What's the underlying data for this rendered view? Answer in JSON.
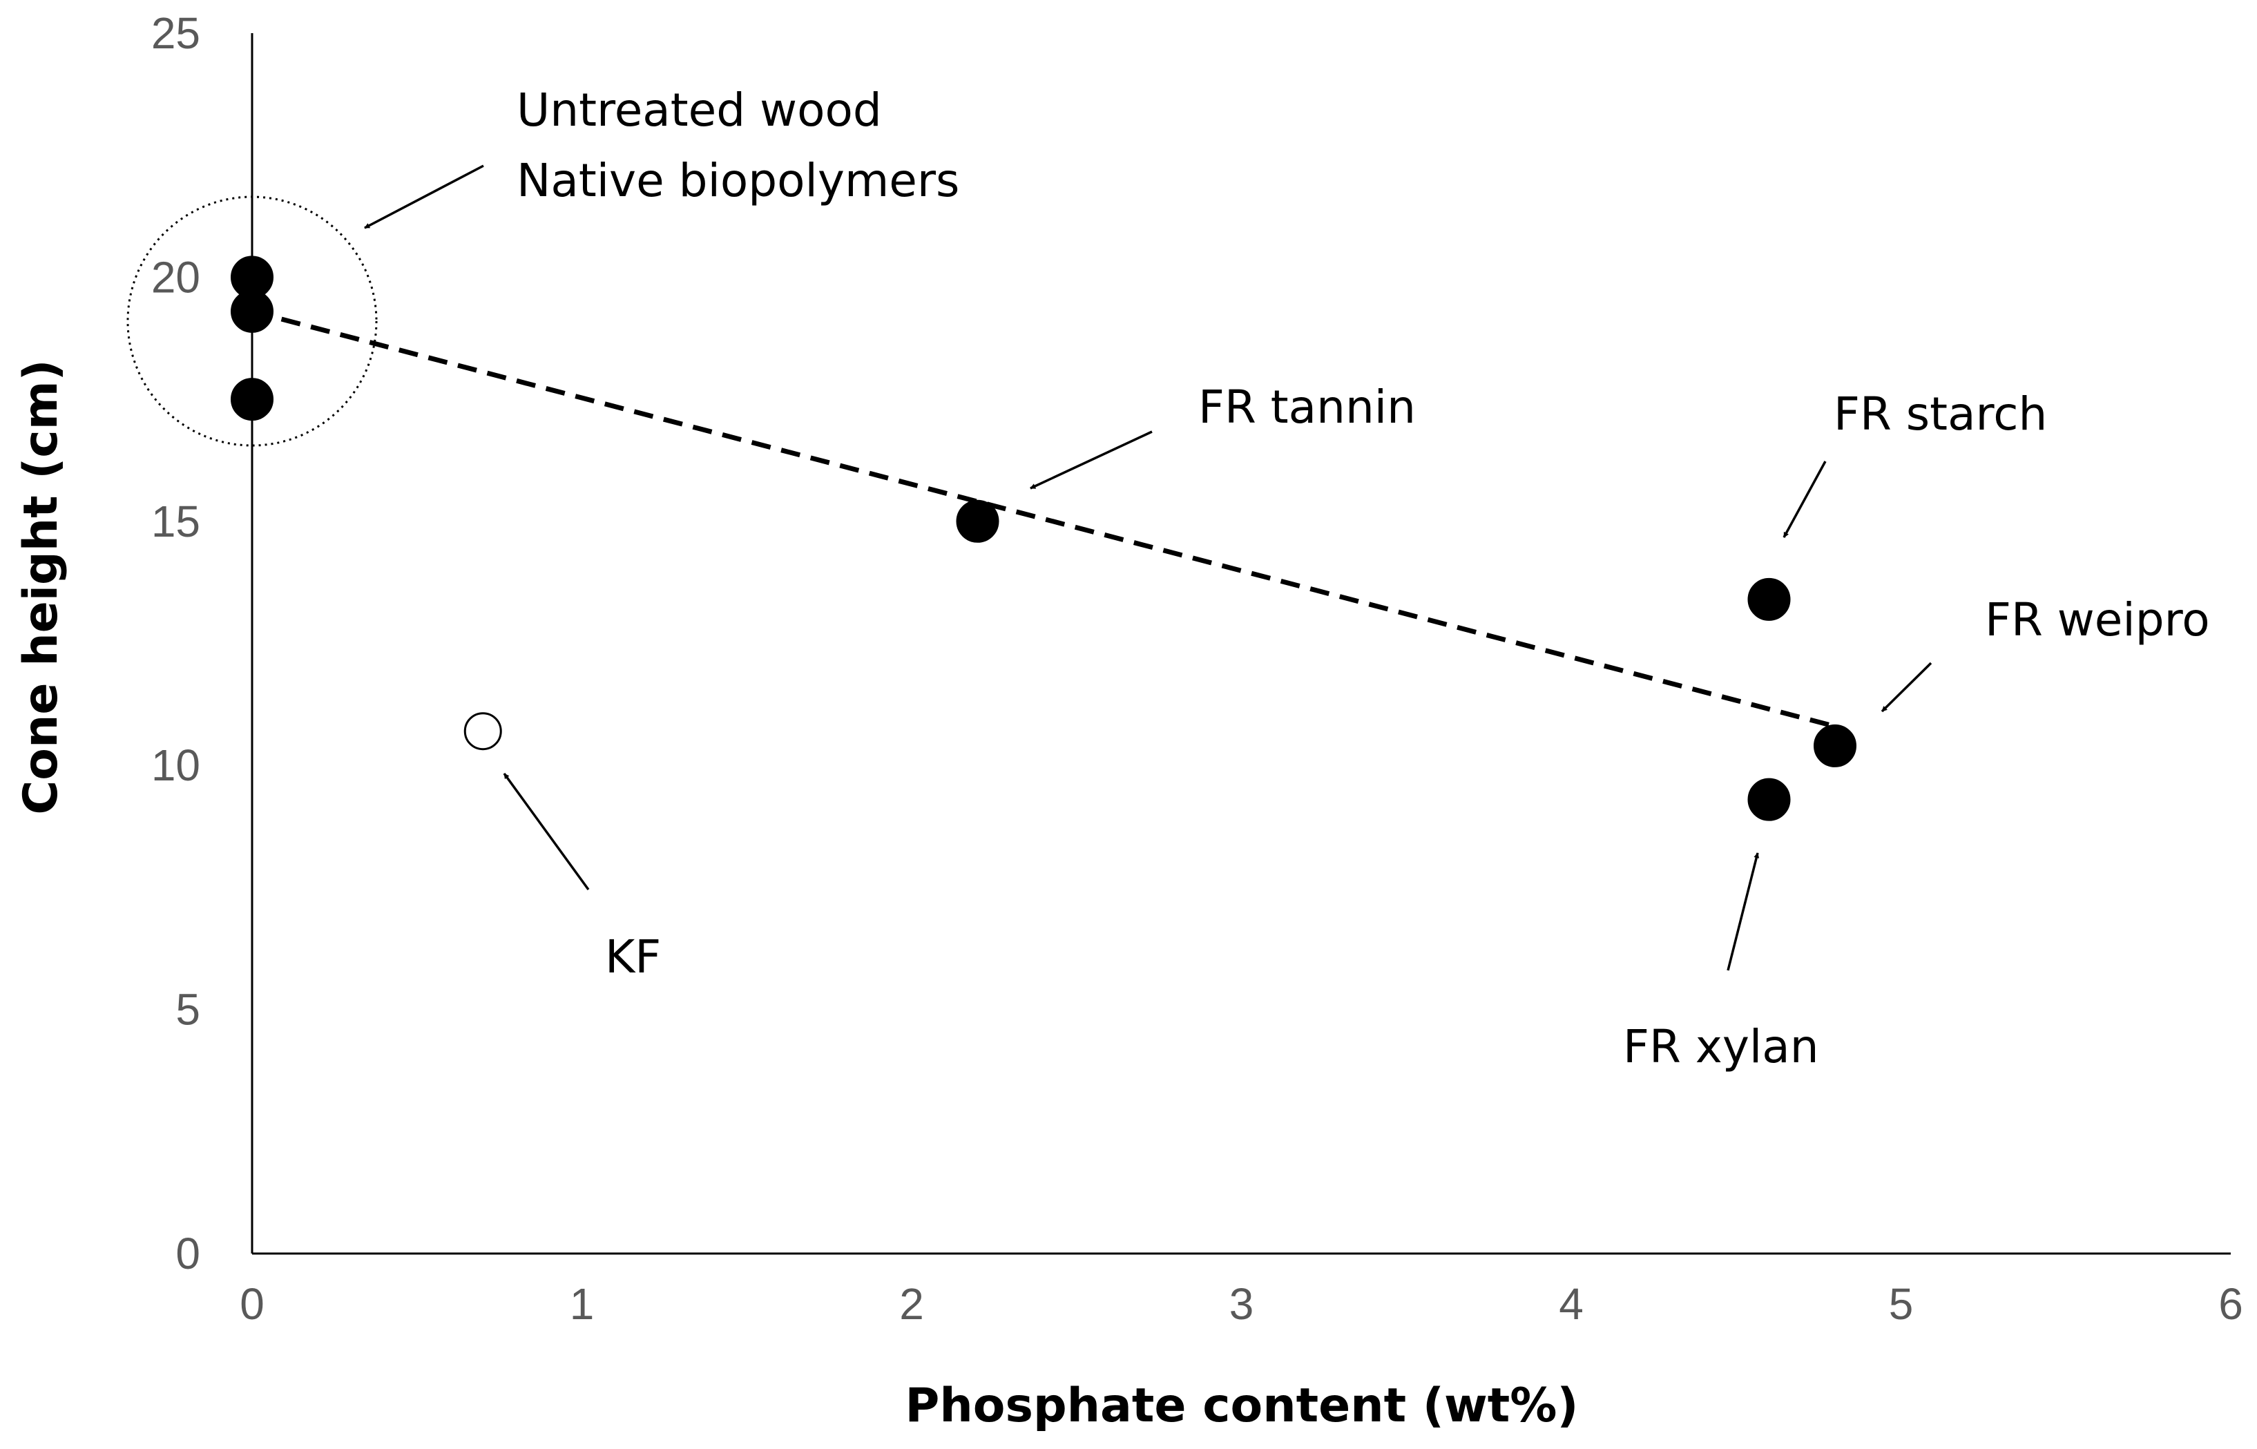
{
  "chart_data": {
    "type": "scatter",
    "xlabel": "Phosphate content (wt%)",
    "ylabel": "Cone height (cm)",
    "xlim": [
      0,
      6
    ],
    "ylim": [
      0,
      25
    ],
    "x_ticks": [
      "0",
      "1",
      "2",
      "3",
      "4",
      "5",
      "6"
    ],
    "y_ticks": [
      "0",
      "5",
      "10",
      "15",
      "20",
      "25"
    ],
    "grid": false,
    "points": [
      {
        "x": 0,
        "y": 20.0,
        "fill": "filled"
      },
      {
        "x": 0,
        "y": 19.3,
        "fill": "filled"
      },
      {
        "x": 0,
        "y": 17.5,
        "fill": "filled"
      },
      {
        "x": 2.2,
        "y": 15.0,
        "fill": "filled"
      },
      {
        "x": 4.6,
        "y": 13.4,
        "fill": "filled"
      },
      {
        "x": 4.8,
        "y": 10.4,
        "fill": "filled"
      },
      {
        "x": 4.6,
        "y": 9.3,
        "fill": "filled"
      },
      {
        "x": 0.7,
        "y": 10.7,
        "fill": "hollow"
      }
    ],
    "trendline": {
      "style": "dashed",
      "from": {
        "x": 0,
        "y": 19.3
      },
      "to": {
        "x": 4.8,
        "y": 10.8
      }
    },
    "highlight_circle": {
      "center": {
        "x": 0,
        "y": 19.1
      },
      "style": "dotted"
    },
    "annotations": [
      {
        "lines": [
          "Untreated wood",
          "Native biopolymers"
        ],
        "target": "highlight_circle"
      },
      {
        "lines": [
          "FR tannin"
        ],
        "target": {
          "x": 2.2,
          "y": 15.0
        }
      },
      {
        "lines": [
          "FR starch"
        ],
        "target": {
          "x": 4.6,
          "y": 13.4
        }
      },
      {
        "lines": [
          "FR weipro"
        ],
        "target": {
          "x": 4.8,
          "y": 10.4
        }
      },
      {
        "lines": [
          "FR xylan"
        ],
        "target": {
          "x": 4.6,
          "y": 9.3
        }
      },
      {
        "lines": [
          "KF"
        ],
        "target": {
          "x": 0.7,
          "y": 10.7
        }
      }
    ],
    "colors": {
      "marker": "#000000",
      "axis": "#000000",
      "tick_text": "#595959"
    }
  }
}
